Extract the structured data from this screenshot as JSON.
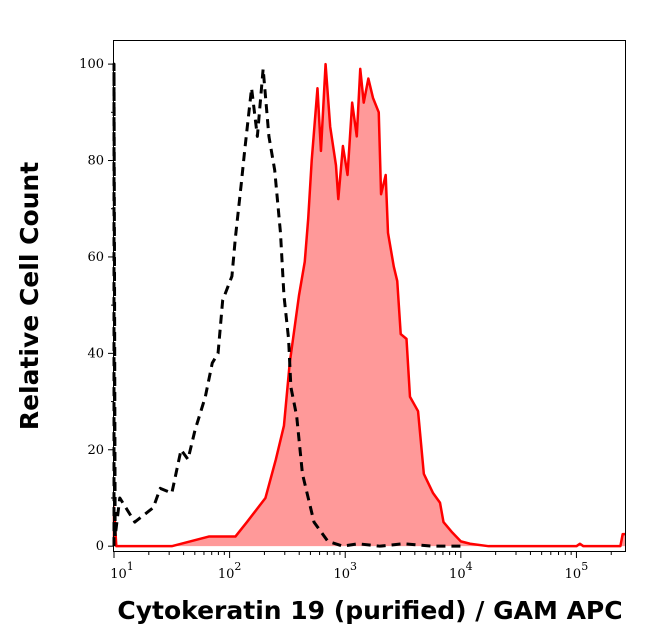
{
  "chart_data": {
    "type": "area",
    "title": "",
    "xlabel": "Cytokeratin 19 (purified) / GAM APC",
    "ylabel": "Relative Cell Count",
    "x_scale": "log",
    "xlim_log10": [
      1.0,
      5.42
    ],
    "ylim": [
      -1,
      105
    ],
    "grid": false,
    "legend": "none",
    "x_ticks": [
      {
        "base": "10",
        "exp": "1",
        "log10": 1
      },
      {
        "base": "10",
        "exp": "2",
        "log10": 2
      },
      {
        "base": "10",
        "exp": "3",
        "log10": 3
      },
      {
        "base": "10",
        "exp": "4",
        "log10": 4
      },
      {
        "base": "10",
        "exp": "5",
        "log10": 5
      }
    ],
    "y_ticks": [
      "0",
      "20",
      "40",
      "60",
      "80",
      "100"
    ],
    "series": [
      {
        "style": "dashed",
        "color": "#000000",
        "fill": null,
        "x_log10": [
          1.0,
          1.0,
          1.01,
          1.05,
          1.18,
          1.34,
          1.4,
          1.5,
          1.58,
          1.64,
          1.7,
          1.79,
          1.85,
          1.9,
          1.94,
          2.02,
          2.05,
          2.1,
          2.13,
          2.19,
          2.24,
          2.29,
          2.34,
          2.39,
          2.44,
          2.47,
          2.51,
          2.53,
          2.58,
          2.63,
          2.73,
          2.85,
          2.98,
          3.11,
          3.3,
          3.5,
          3.76,
          4.0
        ],
        "y": [
          0,
          100,
          2,
          10,
          5,
          8,
          12,
          11,
          20,
          18,
          24,
          31,
          38,
          40,
          51,
          56,
          64,
          75,
          82,
          95,
          85,
          99,
          85,
          78,
          65,
          52,
          43,
          33,
          27,
          15,
          5,
          1,
          0,
          0.5,
          0,
          0.5,
          0,
          0
        ]
      },
      {
        "style": "solid",
        "color": "#ff0000",
        "fill": "#ff9999",
        "x_log10": [
          1.0,
          1.0,
          1.02,
          1.5,
          1.82,
          2.05,
          2.15,
          2.31,
          2.4,
          2.47,
          2.52,
          2.6,
          2.65,
          2.68,
          2.71,
          2.76,
          2.79,
          2.83,
          2.87,
          2.92,
          2.94,
          2.98,
          3.02,
          3.06,
          3.1,
          3.13,
          3.16,
          3.2,
          3.24,
          3.29,
          3.31,
          3.35,
          3.37,
          3.42,
          3.45,
          3.48,
          3.53,
          3.56,
          3.63,
          3.68,
          3.76,
          3.82,
          3.85,
          3.92,
          4.0,
          4.08,
          4.24,
          5.0,
          5.03,
          5.06,
          5.38,
          5.4,
          5.42
        ],
        "y": [
          0,
          8,
          0,
          0,
          2,
          2,
          5,
          10,
          18,
          25,
          38,
          52,
          59,
          68,
          80,
          95,
          82,
          100,
          87,
          79,
          72,
          83,
          77,
          92,
          85,
          99,
          92,
          97,
          93,
          90,
          73,
          77,
          65,
          58,
          55,
          44,
          43,
          31,
          28,
          15,
          11,
          9,
          5,
          3,
          1,
          0.5,
          0,
          0,
          0.5,
          0,
          0,
          2.5,
          2.5
        ]
      }
    ]
  }
}
